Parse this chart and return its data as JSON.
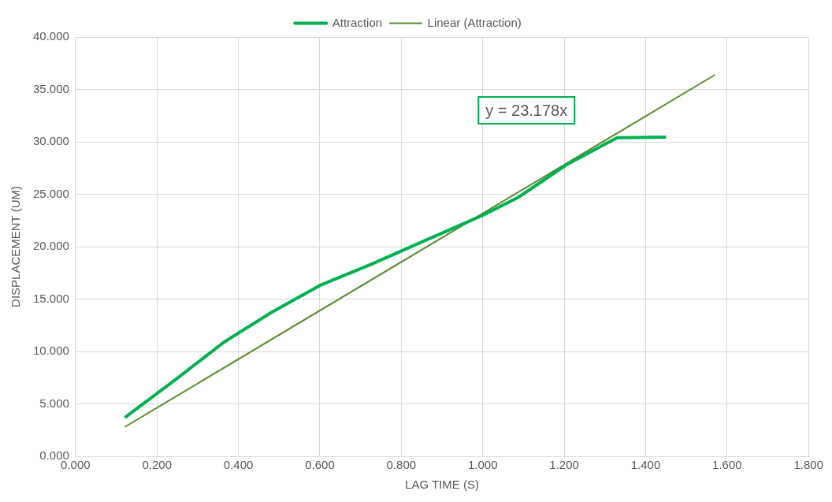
{
  "chart_data": {
    "type": "line",
    "xlabel": "LAG TIME (S)",
    "ylabel": "DISPLACEMENT (UM)",
    "series": [
      {
        "name": "Attraction",
        "color": "#00b050",
        "x": [
          0.121,
          0.245,
          0.365,
          0.48,
          0.6,
          0.725,
          0.83,
          1.0,
          1.087,
          1.205,
          1.33,
          1.45
        ],
        "values": [
          3.7,
          7.3,
          10.9,
          13.7,
          16.3,
          18.3,
          20.1,
          23.0,
          24.7,
          27.8,
          30.4,
          30.45
        ]
      },
      {
        "name": "Linear (Attraction)",
        "color": "#5b8c32",
        "x": [
          0.121,
          1.57
        ],
        "values": [
          2.8,
          36.39
        ]
      }
    ],
    "annotations": [
      "y = 23.178x"
    ],
    "xlim": [
      0,
      1.8
    ],
    "xticks": [
      {
        "value": 0,
        "label": "0.000"
      },
      {
        "value": 0.2,
        "label": "0.200"
      },
      {
        "value": 0.4,
        "label": "0.400"
      },
      {
        "value": 0.6,
        "label": "0.600"
      },
      {
        "value": 0.8,
        "label": "0.800"
      },
      {
        "value": 1,
        "label": "1.000"
      },
      {
        "value": 1.2,
        "label": "1.200"
      },
      {
        "value": 1.4,
        "label": "1.400"
      },
      {
        "value": 1.6,
        "label": "1.600"
      },
      {
        "value": 1.8,
        "label": "1.800"
      }
    ],
    "ylim": [
      0,
      40
    ],
    "yticks": [
      {
        "value": 0,
        "label": "0.000"
      },
      {
        "value": 5,
        "label": "5.000"
      },
      {
        "value": 10,
        "label": "10.000"
      },
      {
        "value": 15,
        "label": "15.000"
      },
      {
        "value": 20,
        "label": "20.000"
      },
      {
        "value": 25,
        "label": "25.000"
      },
      {
        "value": 30,
        "label": "30.000"
      },
      {
        "value": 35,
        "label": "35.000"
      },
      {
        "value": 40,
        "label": "40.000"
      }
    ],
    "grid": true,
    "legend": "top",
    "marker": "none"
  }
}
